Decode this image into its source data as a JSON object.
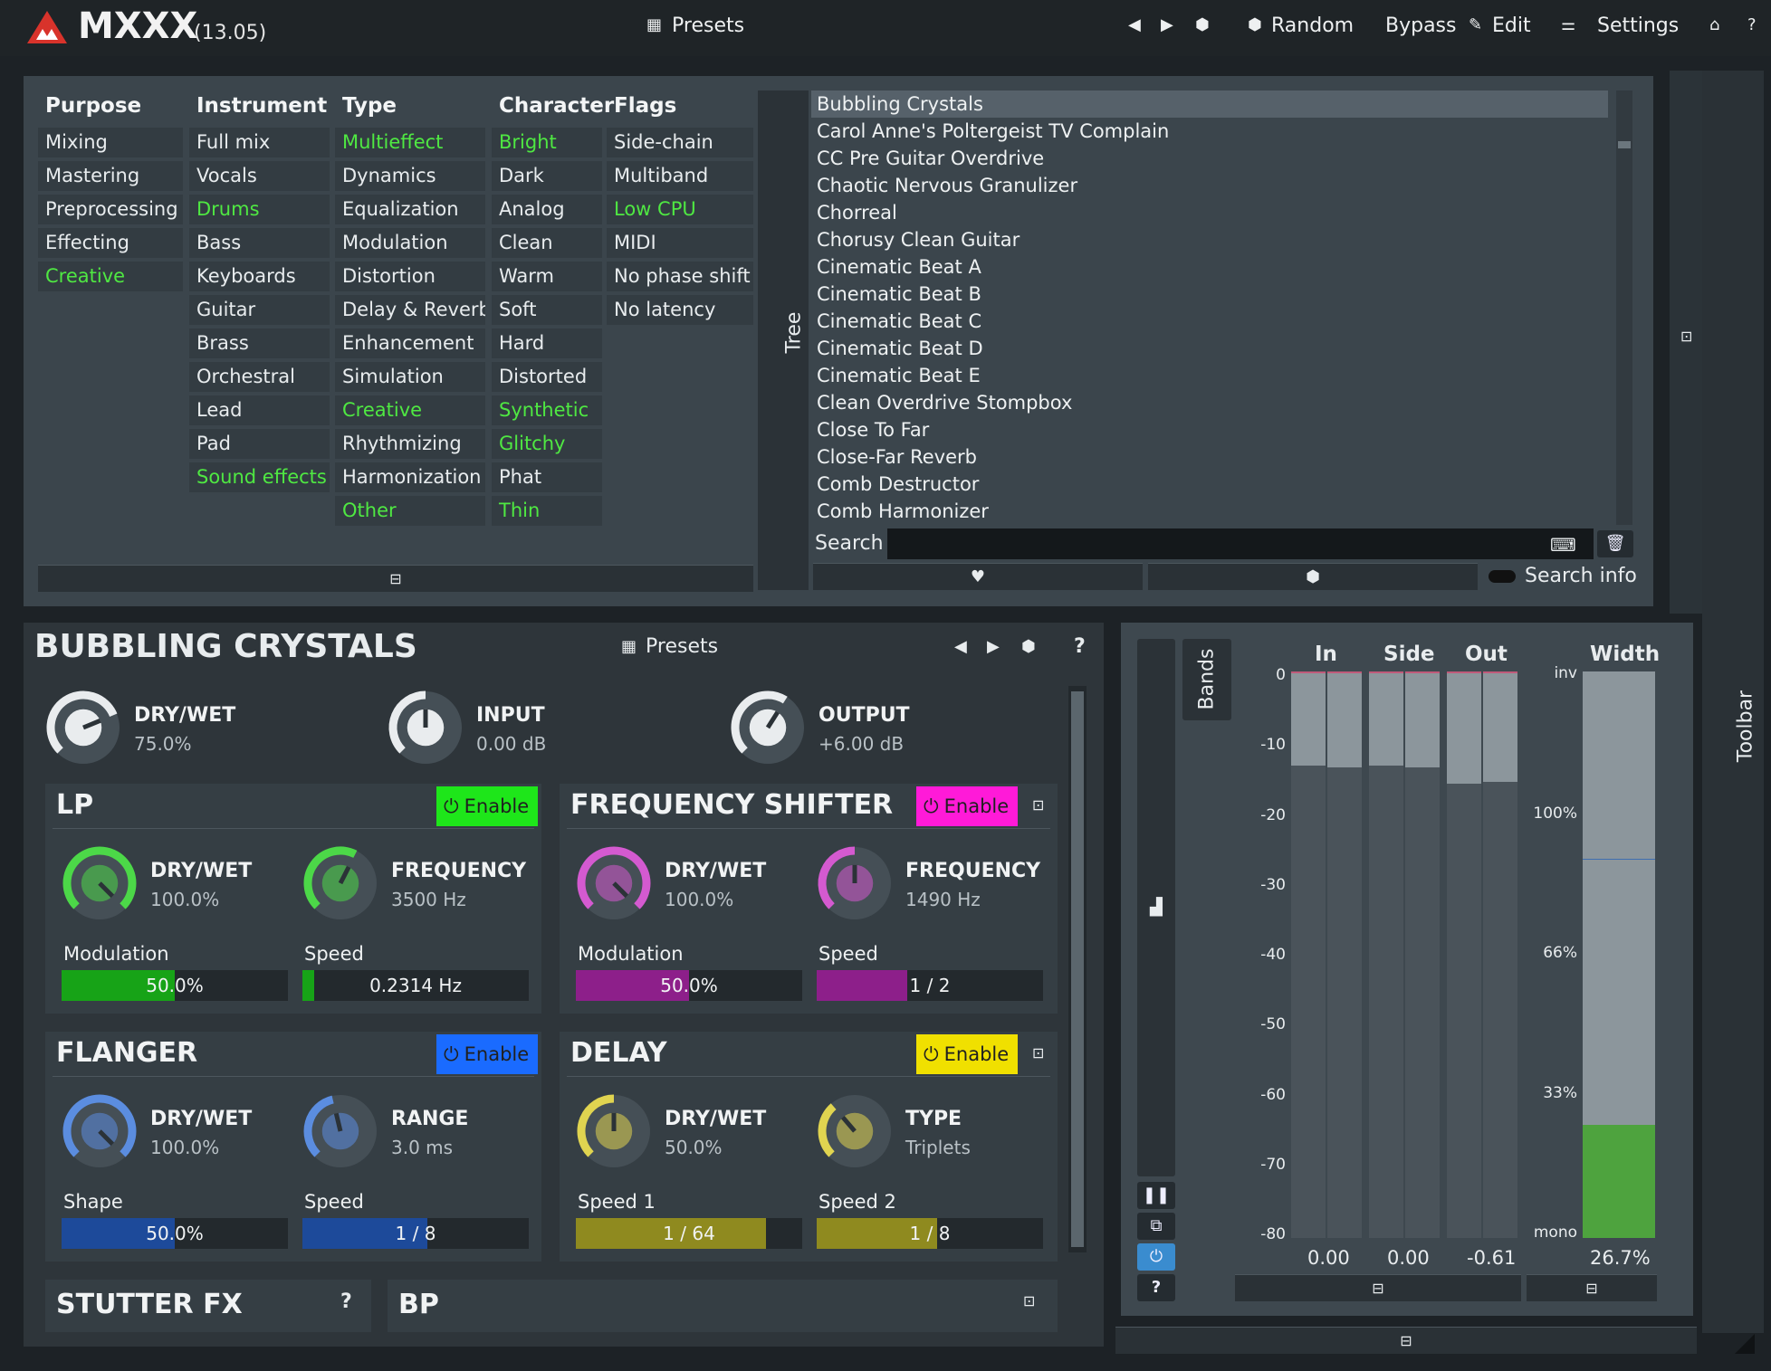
{
  "app": {
    "title": "MXXX",
    "version": "(13.05)"
  },
  "topbar": {
    "presets": "Presets",
    "random": "Random",
    "bypass": "Bypass",
    "edit": "Edit",
    "settings": "Settings"
  },
  "browser": {
    "columns": [
      {
        "header": "Purpose",
        "items": [
          "Mixing",
          "Mastering",
          "Preprocessing",
          "Effecting",
          "Creative"
        ],
        "active": [
          4
        ]
      },
      {
        "header": "Instrument",
        "items": [
          "Full mix",
          "Vocals",
          "Drums",
          "Bass",
          "Keyboards",
          "Guitar",
          "Brass",
          "Orchestral",
          "Lead",
          "Pad",
          "Sound effects"
        ],
        "active": [
          2,
          10
        ]
      },
      {
        "header": "Type",
        "items": [
          "Multieffect",
          "Dynamics",
          "Equalization",
          "Modulation",
          "Distortion",
          "Delay & Reverb",
          "Enhancement",
          "Simulation",
          "Creative",
          "Rhythmizing",
          "Harmonization",
          "Other"
        ],
        "active": [
          0,
          8,
          11
        ]
      },
      {
        "header": "Character",
        "items": [
          "Bright",
          "Dark",
          "Analog",
          "Clean",
          "Warm",
          "Soft",
          "Hard",
          "Distorted",
          "Synthetic",
          "Glitchy",
          "Phat",
          "Thin"
        ],
        "active": [
          0,
          8,
          9,
          11
        ]
      },
      {
        "header": "Flags",
        "items": [
          "Side-chain",
          "Multiband",
          "Low CPU",
          "MIDI",
          "No phase shift",
          "No latency"
        ],
        "active": [
          2
        ]
      }
    ],
    "tree_label": "Tree",
    "presets": [
      "Bubbling Crystals",
      "Carol Anne's Poltergeist TV Complain",
      "CC Pre Guitar Overdrive",
      "Chaotic Nervous Granulizer",
      "Chorreal",
      "Chorusy Clean Guitar",
      "Cinematic Beat A",
      "Cinematic Beat B",
      "Cinematic Beat C",
      "Cinematic Beat D",
      "Cinematic Beat E",
      "Clean Overdrive Stompbox",
      "Close To Far",
      "Close-Far Reverb",
      "Comb Destructor",
      "Comb Harmonizer"
    ],
    "selected_preset": 0,
    "search_label": "Search",
    "search_info": "Search info"
  },
  "editor": {
    "title": "BUBBLING CRYSTALS",
    "presets": "Presets",
    "main_knobs": [
      {
        "label": "DRY/WET",
        "value": "75.0%"
      },
      {
        "label": "INPUT",
        "value": "0.00 dB"
      },
      {
        "label": "OUTPUT",
        "value": "+6.00 dB"
      }
    ],
    "modules": {
      "lp": {
        "title": "LP",
        "enable": "Enable",
        "color": "#1ee61a",
        "k1": {
          "label": "DRY/WET",
          "value": "100.0%"
        },
        "k2": {
          "label": "FREQUENCY",
          "value": "3500 Hz"
        },
        "s1": {
          "label": "Modulation",
          "value": "50.0%",
          "level": 0.5
        },
        "s2": {
          "label": "Speed",
          "value": "0.2314 Hz",
          "level": 0.05
        }
      },
      "freq": {
        "title": "FREQUENCY SHIFTER",
        "enable": "Enable",
        "color": "#ff1ad8",
        "k1": {
          "label": "DRY/WET",
          "value": "100.0%"
        },
        "k2": {
          "label": "FREQUENCY",
          "value": "1490 Hz"
        },
        "s1": {
          "label": "Modulation",
          "value": "50.0%",
          "level": 0.5
        },
        "s2": {
          "label": "Speed",
          "value": "1 / 2",
          "level": 0.4
        }
      },
      "flanger": {
        "title": "FLANGER",
        "enable": "Enable",
        "color": "#1a6bff",
        "k1": {
          "label": "DRY/WET",
          "value": "100.0%"
        },
        "k2": {
          "label": "RANGE",
          "value": "3.0 ms"
        },
        "s1": {
          "label": "Shape",
          "value": "50.0%",
          "level": 0.5
        },
        "s2": {
          "label": "Speed",
          "value": "1 / 8",
          "level": 0.55
        }
      },
      "delay": {
        "title": "DELAY",
        "enable": "Enable",
        "color": "#f0e000",
        "k1": {
          "label": "DRY/WET",
          "value": "50.0%"
        },
        "k2": {
          "label": "TYPE",
          "value": "Triplets"
        },
        "s1": {
          "label": "Speed 1",
          "value": "1 / 64",
          "level": 0.84
        },
        "s2": {
          "label": "Speed 2",
          "value": "1 / 8",
          "level": 0.53
        }
      }
    },
    "stutter": "STUTTER FX",
    "bp": "BP"
  },
  "meters": {
    "bands": "Bands",
    "headers": {
      "in": "In",
      "side": "Side",
      "out": "Out",
      "width": "Width"
    },
    "scale": [
      "0",
      "-10",
      "-20",
      "-30",
      "-40",
      "-50",
      "-60",
      "-70",
      "-80"
    ],
    "width_scale": [
      "inv",
      "100%",
      "66%",
      "33%",
      "mono"
    ],
    "values": {
      "in": "0.00",
      "side": "0.00",
      "out": "-0.61",
      "width": "26.7%"
    },
    "levels_db": {
      "in_l": -13.5,
      "in_r": -13.7,
      "side_l": -13.5,
      "side_r": -13.7,
      "out_l": -16.0,
      "out_r": -15.8
    },
    "width_level": 0.2
  },
  "toolbar": "Toolbar"
}
